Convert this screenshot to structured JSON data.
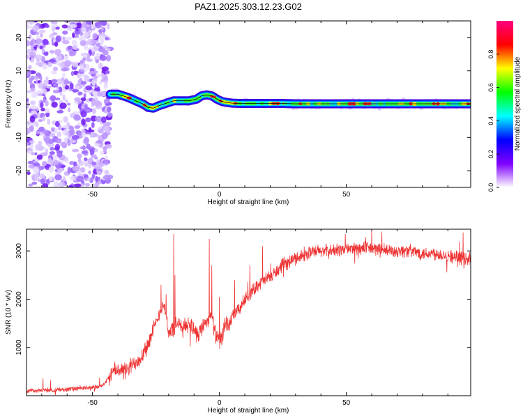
{
  "title": "PAZ1.2025.303.12.23.G02",
  "chart_data": [
    {
      "type": "heatmap",
      "title": "PAZ1.2025.303.12.23.G02",
      "xlabel": "Height of straight line (km)",
      "ylabel": "Frequency (Hz)",
      "xlim": [
        -76,
        99
      ],
      "ylim": [
        -25,
        25
      ],
      "xticks": [
        -50,
        0,
        50
      ],
      "yticks": [
        -20,
        -10,
        0,
        10,
        20
      ],
      "noise_region_x": [
        -76,
        -43
      ],
      "ridge_x": [
        -43,
        -40,
        -36,
        -33,
        -30,
        -28,
        -26,
        -24,
        -22,
        -20,
        -18,
        -15,
        -12,
        -9,
        -7,
        -5,
        -3,
        -1,
        1,
        3,
        5,
        8,
        12,
        16,
        20,
        25,
        30,
        40,
        50,
        60,
        70,
        80,
        90,
        99
      ],
      "ridge_freq": [
        3.0,
        3.0,
        2.0,
        1.0,
        0.0,
        -1.0,
        -1.2,
        -0.5,
        0.0,
        0.5,
        1.0,
        1.0,
        1.0,
        1.5,
        2.5,
        2.8,
        2.5,
        1.5,
        0.8,
        0.5,
        0.3,
        0.2,
        0.2,
        0.2,
        0.2,
        0.2,
        0.1,
        0.1,
        0.1,
        0.1,
        0.1,
        0.1,
        0.1,
        0.1
      ],
      "colorbar": {
        "label": "Normalized spectral amplitude",
        "range": [
          0,
          1
        ],
        "ticks": [
          "0.0",
          "0.2",
          "0.4",
          "0.6",
          "0.8"
        ],
        "tick_values": [
          0.0,
          0.2,
          0.4,
          0.6,
          0.8
        ],
        "colors": [
          "#ffffff",
          "#8000ff",
          "#0000ff",
          "#00ffff",
          "#00ff00",
          "#ffff00",
          "#ff0000",
          "#ff0080"
        ]
      }
    },
    {
      "type": "line",
      "xlabel": "Height of straight line (km)",
      "ylabel": "SNR (10 * v/v)",
      "xlim": [
        -76,
        99
      ],
      "ylim": [
        0,
        3450
      ],
      "xticks": [
        -50,
        0,
        50
      ],
      "yticks": [
        1000,
        2000,
        3000
      ],
      "color": "#ee3333",
      "series": [
        {
          "name": "SNR",
          "x": [
            -76,
            -65,
            -55,
            -48,
            -45,
            -43,
            -40,
            -37,
            -35,
            -33,
            -31,
            -29,
            -27,
            -25,
            -23,
            -22,
            -21,
            -20,
            -19,
            -18,
            -17,
            -16,
            -15,
            -14,
            -13,
            -12,
            -11,
            -10,
            -9,
            -8,
            -7,
            -6,
            -5,
            -4,
            -3,
            -2,
            -1,
            0,
            1,
            2,
            4,
            6,
            8,
            10,
            12,
            15,
            18,
            21,
            25,
            30,
            35,
            40,
            45,
            50,
            55,
            60,
            65,
            70,
            75,
            80,
            85,
            90,
            95,
            99
          ],
          "y": [
            100,
            120,
            150,
            180,
            250,
            450,
            550,
            500,
            600,
            700,
            800,
            1000,
            1200,
            1500,
            1800,
            1900,
            1700,
            1300,
            1350,
            1400,
            1450,
            1500,
            1400,
            1400,
            1450,
            1500,
            1450,
            1400,
            1300,
            1300,
            1400,
            1500,
            1550,
            1600,
            1700,
            1350,
            1200,
            1150,
            1200,
            1400,
            1500,
            1700,
            1800,
            2000,
            2100,
            2300,
            2400,
            2500,
            2700,
            2850,
            2950,
            3000,
            3000,
            3050,
            3050,
            3050,
            3000,
            3000,
            3000,
            2950,
            2950,
            2900,
            2850,
            2850
          ],
          "spikes": [
            {
              "x": -23,
              "y": 2300
            },
            {
              "x": -21,
              "y": 2100
            },
            {
              "x": -18,
              "y": 3350
            },
            {
              "x": -17.5,
              "y": 2500
            },
            {
              "x": -4,
              "y": 3250
            },
            {
              "x": -3,
              "y": 2700
            },
            {
              "x": 0,
              "y": 2050
            },
            {
              "x": 6,
              "y": 2400
            },
            {
              "x": 12,
              "y": 2700
            },
            {
              "x": 17,
              "y": 3100
            },
            {
              "x": 60,
              "y": 3420
            },
            {
              "x": 64,
              "y": 3400
            },
            {
              "x": 96,
              "y": 3380
            }
          ]
        }
      ]
    }
  ]
}
